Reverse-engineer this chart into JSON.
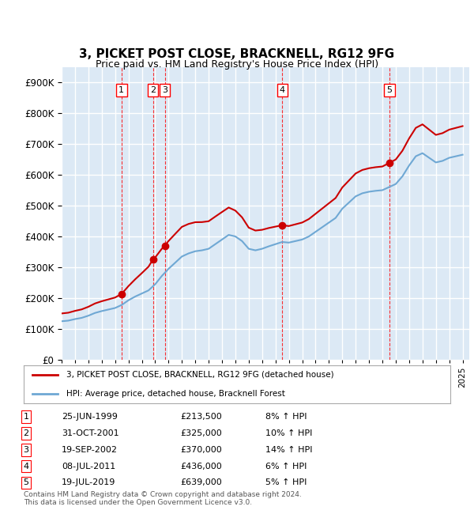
{
  "title": "3, PICKET POST CLOSE, BRACKNELL, RG12 9FG",
  "subtitle": "Price paid vs. HM Land Registry's House Price Index (HPI)",
  "background_color": "#dce9f5",
  "plot_bg_color": "#dce9f5",
  "ylabel_color": "#222222",
  "ylim": [
    0,
    950000
  ],
  "yticks": [
    0,
    100000,
    200000,
    300000,
    400000,
    500000,
    600000,
    700000,
    800000,
    900000
  ],
  "xlim_start": 1995.0,
  "xlim_end": 2025.5,
  "transactions": [
    {
      "num": 1,
      "year": 1999.48,
      "price": 213500,
      "date": "25-JUN-1999",
      "pct": "8%",
      "label": "1"
    },
    {
      "num": 2,
      "year": 2001.83,
      "price": 325000,
      "date": "31-OCT-2001",
      "pct": "10%",
      "label": "2"
    },
    {
      "num": 3,
      "year": 2002.72,
      "price": 370000,
      "date": "19-SEP-2002",
      "pct": "14%",
      "label": "3"
    },
    {
      "num": 4,
      "year": 2011.52,
      "price": 436000,
      "date": "08-JUL-2011",
      "pct": "6%",
      "label": "4"
    },
    {
      "num": 5,
      "year": 2019.54,
      "price": 639000,
      "date": "19-JUL-2019",
      "pct": "5%",
      "label": "5"
    }
  ],
  "legend_line1": "3, PICKET POST CLOSE, BRACKNELL, RG12 9FG (detached house)",
  "legend_line2": "HPI: Average price, detached house, Bracknell Forest",
  "footer": "Contains HM Land Registry data © Crown copyright and database right 2024.\nThis data is licensed under the Open Government Licence v3.0.",
  "table_rows": [
    [
      "1",
      "25-JUN-1999",
      "£213,500",
      "8% ↑ HPI"
    ],
    [
      "2",
      "31-OCT-2001",
      "£325,000",
      "10% ↑ HPI"
    ],
    [
      "3",
      "19-SEP-2002",
      "£370,000",
      "14% ↑ HPI"
    ],
    [
      "4",
      "08-JUL-2011",
      "£436,000",
      "6% ↑ HPI"
    ],
    [
      "5",
      "19-JUL-2019",
      "£639,000",
      "5% ↑ HPI"
    ]
  ]
}
